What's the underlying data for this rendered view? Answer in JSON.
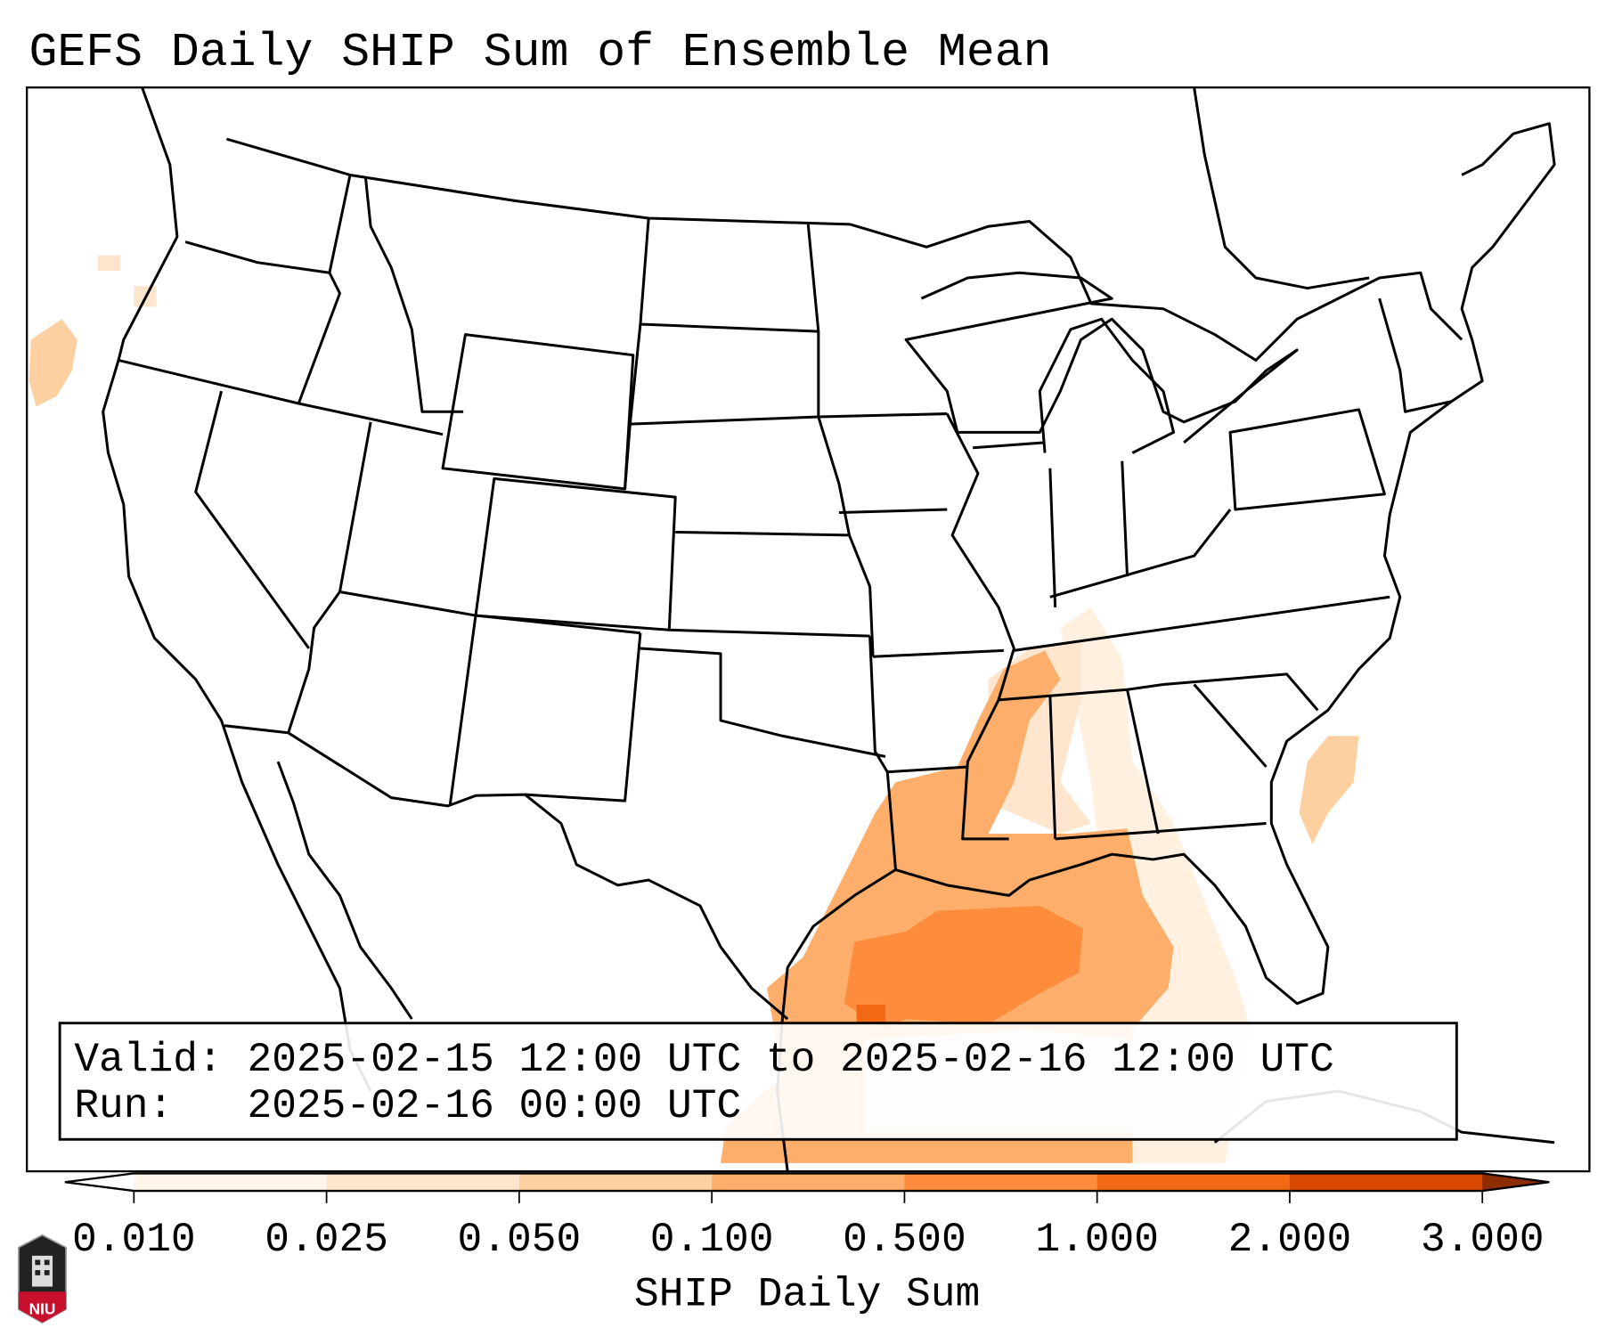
{
  "title": "GEFS Daily SHIP Sum of Ensemble Mean",
  "info_box": {
    "valid_line": "Valid: 2025-02-15 12:00 UTC to 2025-02-16 12:00 UTC",
    "run_line": "Run:   2025-02-16 00:00 UTC"
  },
  "colorbar": {
    "label": "SHIP Daily Sum",
    "ticks": [
      "0.010",
      "0.025",
      "0.050",
      "0.100",
      "0.500",
      "1.000",
      "2.000",
      "3.000"
    ],
    "colors": [
      "#fff5eb",
      "#fee6ce",
      "#fdd0a2",
      "#fdae6b",
      "#fd8d3c",
      "#f16913",
      "#d94801",
      "#8c2d04"
    ],
    "extend": "both"
  },
  "logo": {
    "text": "NIU",
    "colors": {
      "top": "#222222",
      "bottom": "#c8102e"
    }
  }
}
